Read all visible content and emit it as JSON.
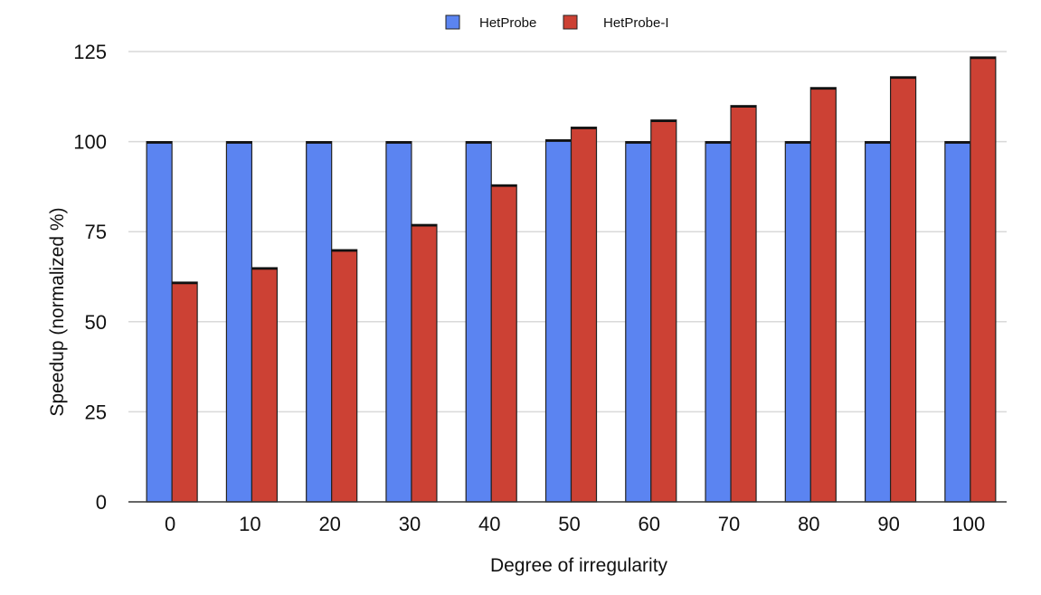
{
  "chart_data": {
    "type": "bar",
    "categories": [
      "0",
      "10",
      "20",
      "30",
      "40",
      "50",
      "60",
      "70",
      "80",
      "90",
      "100"
    ],
    "series": [
      {
        "name": "HetProbe",
        "color": "#5b84f1",
        "values": [
          100,
          100,
          100,
          100,
          100,
          100.5,
          100,
          100,
          100,
          100,
          100
        ]
      },
      {
        "name": "HetProbe-I",
        "color": "#cc4134",
        "values": [
          61,
          65,
          70,
          77,
          88,
          104,
          106,
          110,
          115,
          118,
          123.5
        ]
      }
    ],
    "xlabel": "Degree of irregularity",
    "ylabel": "Speedup (normalized %)",
    "ylim": [
      0,
      125
    ],
    "yticks": [
      0,
      25,
      50,
      75,
      100,
      125
    ],
    "grid": true,
    "legend_position": "top-center"
  }
}
